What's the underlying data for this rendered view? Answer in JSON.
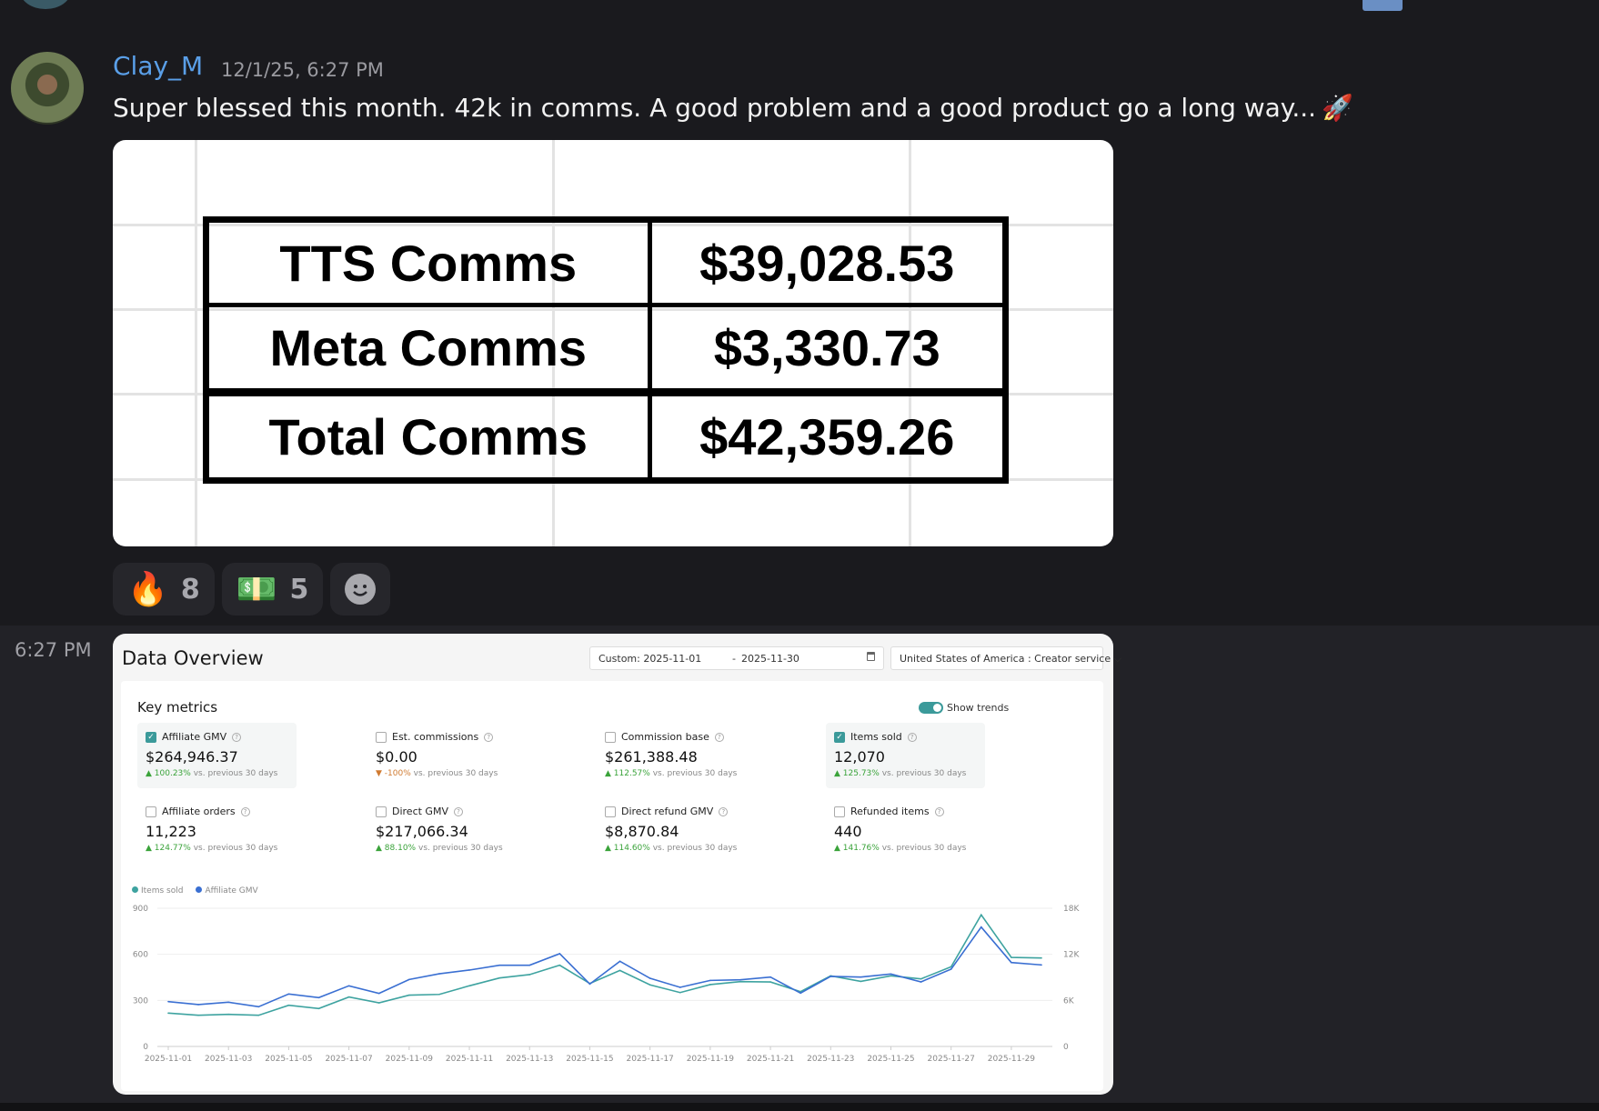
{
  "message": {
    "username": "Clay_M",
    "timestamp": "12/1/25, 6:27 PM",
    "text": "Super blessed this month. 42k in comms. A good problem and a good product go a long way...",
    "text_emoji": "🚀",
    "attachment_table": [
      {
        "label": "TTS Comms",
        "value": "$39,028.53"
      },
      {
        "label": "Meta Comms",
        "value": "$3,330.73"
      },
      {
        "label": "Total Comms",
        "value": "$42,359.26"
      }
    ],
    "reactions": [
      {
        "emoji": "🔥",
        "count": "8"
      },
      {
        "emoji": "💵",
        "count": "5"
      }
    ]
  },
  "followup": {
    "time": "6:27 PM",
    "overview": {
      "title": "Data Overview",
      "date_start": "Custom: 2025-11-01",
      "date_sep": "-",
      "date_end": "2025-11-30",
      "region": "United States of America : Creator service",
      "key_metrics_title": "Key metrics",
      "show_trends_label": "Show trends",
      "show_trends_on": true,
      "metrics": [
        {
          "label": "Affiliate GMV",
          "value": "$264,946.37",
          "change": "100.23%",
          "dir": "up",
          "compare": "vs. previous 30 days",
          "checked": true
        },
        {
          "label": "Est. commissions",
          "value": "$0.00",
          "change": "-100%",
          "dir": "down",
          "compare": "vs. previous 30 days",
          "checked": false
        },
        {
          "label": "Commission base",
          "value": "$261,388.48",
          "change": "112.57%",
          "dir": "up",
          "compare": "vs. previous 30 days",
          "checked": false
        },
        {
          "label": "Items sold",
          "value": "12,070",
          "change": "125.73%",
          "dir": "up",
          "compare": "vs. previous 30 days",
          "checked": true
        },
        {
          "label": "Affiliate orders",
          "value": "11,223",
          "change": "124.77%",
          "dir": "up",
          "compare": "vs. previous 30 days",
          "checked": false
        },
        {
          "label": "Direct GMV",
          "value": "$217,066.34",
          "change": "88.10%",
          "dir": "up",
          "compare": "vs. previous 30 days",
          "checked": false
        },
        {
          "label": "Direct refund GMV",
          "value": "$8,870.84",
          "change": "114.60%",
          "dir": "up",
          "compare": "vs. previous 30 days",
          "checked": false
        },
        {
          "label": "Refunded items",
          "value": "440",
          "change": "141.76%",
          "dir": "up",
          "compare": "vs. previous 30 days",
          "checked": false
        }
      ]
    }
  },
  "chart_data": {
    "type": "line",
    "grid": true,
    "legend_position": "top-left",
    "x": [
      "2025-11-01",
      "2025-11-02",
      "2025-11-03",
      "2025-11-04",
      "2025-11-05",
      "2025-11-06",
      "2025-11-07",
      "2025-11-08",
      "2025-11-09",
      "2025-11-10",
      "2025-11-11",
      "2025-11-12",
      "2025-11-13",
      "2025-11-14",
      "2025-11-15",
      "2025-11-16",
      "2025-11-17",
      "2025-11-18",
      "2025-11-19",
      "2025-11-20",
      "2025-11-21",
      "2025-11-22",
      "2025-11-23",
      "2025-11-24",
      "2025-11-25",
      "2025-11-26",
      "2025-11-27",
      "2025-11-28",
      "2025-11-29",
      "2025-11-30"
    ],
    "x_tick_labels": [
      "2025-11-01",
      "2025-11-03",
      "2025-11-05",
      "2025-11-07",
      "2025-11-09",
      "2025-11-11",
      "2025-11-13",
      "2025-11-15",
      "2025-11-17",
      "2025-11-19",
      "2025-11-21",
      "2025-11-23",
      "2025-11-25",
      "2025-11-27",
      "2025-11-29"
    ],
    "y_left": {
      "range": [
        0,
        900
      ],
      "ticks": [
        "0",
        "300",
        "600",
        "900"
      ]
    },
    "y_right": {
      "range": [
        0,
        18000
      ],
      "ticks": [
        "0",
        "6K",
        "12K",
        "18K"
      ]
    },
    "series": [
      {
        "name": "Items sold",
        "axis": "left",
        "color": "#3ea3a0",
        "values": [
          217,
          203,
          209,
          203,
          268,
          247,
          322,
          284,
          334,
          339,
          395,
          446,
          468,
          529,
          410,
          495,
          401,
          351,
          403,
          422,
          420,
          357,
          460,
          424,
          460,
          440,
          519,
          857,
          580,
          576
        ]
      },
      {
        "name": "Affiliate GMV",
        "axis": "right",
        "color": "#3a6fd2",
        "values": [
          5840,
          5450,
          5760,
          5170,
          6830,
          6360,
          7900,
          6910,
          8720,
          9470,
          9950,
          10580,
          10580,
          12080,
          8130,
          11090,
          8880,
          7700,
          8600,
          8680,
          9040,
          6950,
          9120,
          9040,
          9430,
          8410,
          10070,
          15550,
          10930,
          10620
        ]
      }
    ]
  }
}
